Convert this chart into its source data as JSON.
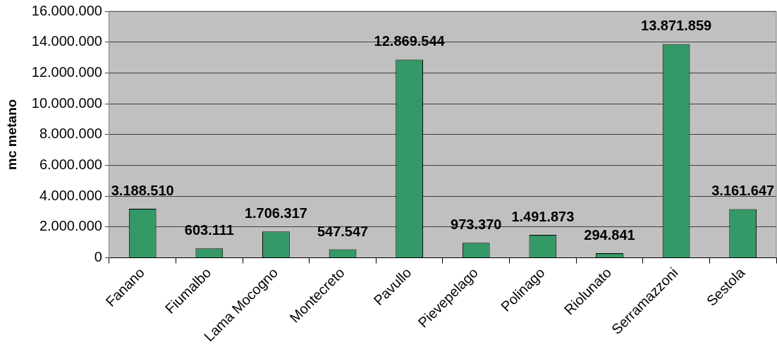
{
  "chart_data": {
    "type": "bar",
    "categories": [
      "Fanano",
      "Fiumalbo",
      "Lama Mocogno",
      "Montecreto",
      "Pavullo",
      "Pievepelago",
      "Polinago",
      "Riolunato",
      "Serramazzoni",
      "Sestola"
    ],
    "values": [
      3188510,
      603111,
      1706317,
      547547,
      12869544,
      973370,
      1491873,
      294841,
      13871859,
      3161647
    ],
    "value_labels": [
      "3.188.510",
      "603.111",
      "1.706.317",
      "547.547",
      "12.869.544",
      "973.370",
      "1.491.873",
      "294.841",
      "13.871.859",
      "3.161.647"
    ],
    "color": "#339966",
    "ylabel": "mc metano",
    "ylim": [
      0,
      16000000
    ],
    "yticks": [
      {
        "value": 0,
        "label": "0"
      },
      {
        "value": 2000000,
        "label": "2.000.000"
      },
      {
        "value": 4000000,
        "label": "4.000.000"
      },
      {
        "value": 6000000,
        "label": "6.000.000"
      },
      {
        "value": 8000000,
        "label": "8.000.000"
      },
      {
        "value": 10000000,
        "label": "10.000.000"
      },
      {
        "value": 12000000,
        "label": "12.000.000"
      },
      {
        "value": 14000000,
        "label": "14.000.000"
      },
      {
        "value": 16000000,
        "label": "16.000.000"
      }
    ],
    "grid": "y",
    "legend": false
  }
}
